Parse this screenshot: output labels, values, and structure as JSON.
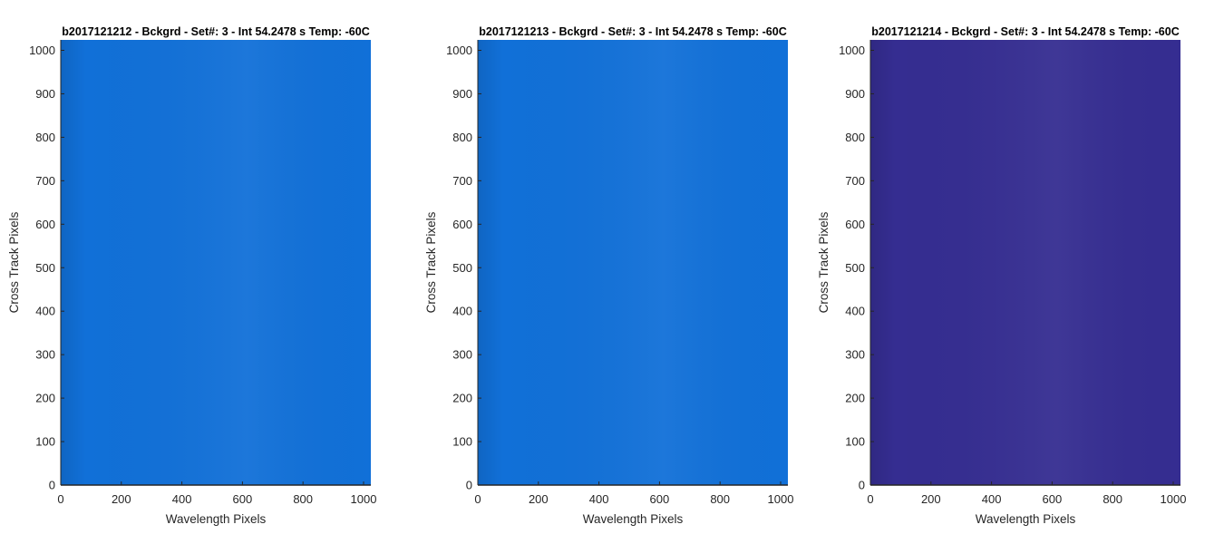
{
  "chart_data": [
    {
      "type": "heatmap",
      "title": "b2017121212 - Bckgrd - Set#: 3 - Int 54.2478 s Temp: -60C",
      "xlabel": "Wavelength Pixels",
      "ylabel": "Cross Track Pixels",
      "xlim": [
        0,
        1024
      ],
      "ylim": [
        0,
        1024
      ],
      "xticks": [
        0,
        200,
        400,
        600,
        800,
        1000
      ],
      "yticks": [
        0,
        100,
        200,
        300,
        400,
        500,
        600,
        700,
        800,
        900,
        1000
      ],
      "fill_color": "#1170d8",
      "grid": false
    },
    {
      "type": "heatmap",
      "title": "b2017121213 - Bckgrd - Set#: 3 - Int 54.2478 s Temp: -60C",
      "xlabel": "Wavelength Pixels",
      "ylabel": "Cross Track Pixels",
      "xlim": [
        0,
        1024
      ],
      "ylim": [
        0,
        1024
      ],
      "xticks": [
        0,
        200,
        400,
        600,
        800,
        1000
      ],
      "yticks": [
        0,
        100,
        200,
        300,
        400,
        500,
        600,
        700,
        800,
        900,
        1000
      ],
      "fill_color": "#1170d8",
      "grid": false
    },
    {
      "type": "heatmap",
      "title": "b2017121214 - Bckgrd - Set#: 3 - Int 54.2478 s Temp: -60C",
      "xlabel": "Wavelength Pixels",
      "ylabel": "Cross Track Pixels",
      "xlim": [
        0,
        1024
      ],
      "ylim": [
        0,
        1024
      ],
      "xticks": [
        0,
        200,
        400,
        600,
        800,
        1000
      ],
      "yticks": [
        0,
        100,
        200,
        300,
        400,
        500,
        600,
        700,
        800,
        900,
        1000
      ],
      "fill_color": "#352d91",
      "grid": false
    }
  ]
}
